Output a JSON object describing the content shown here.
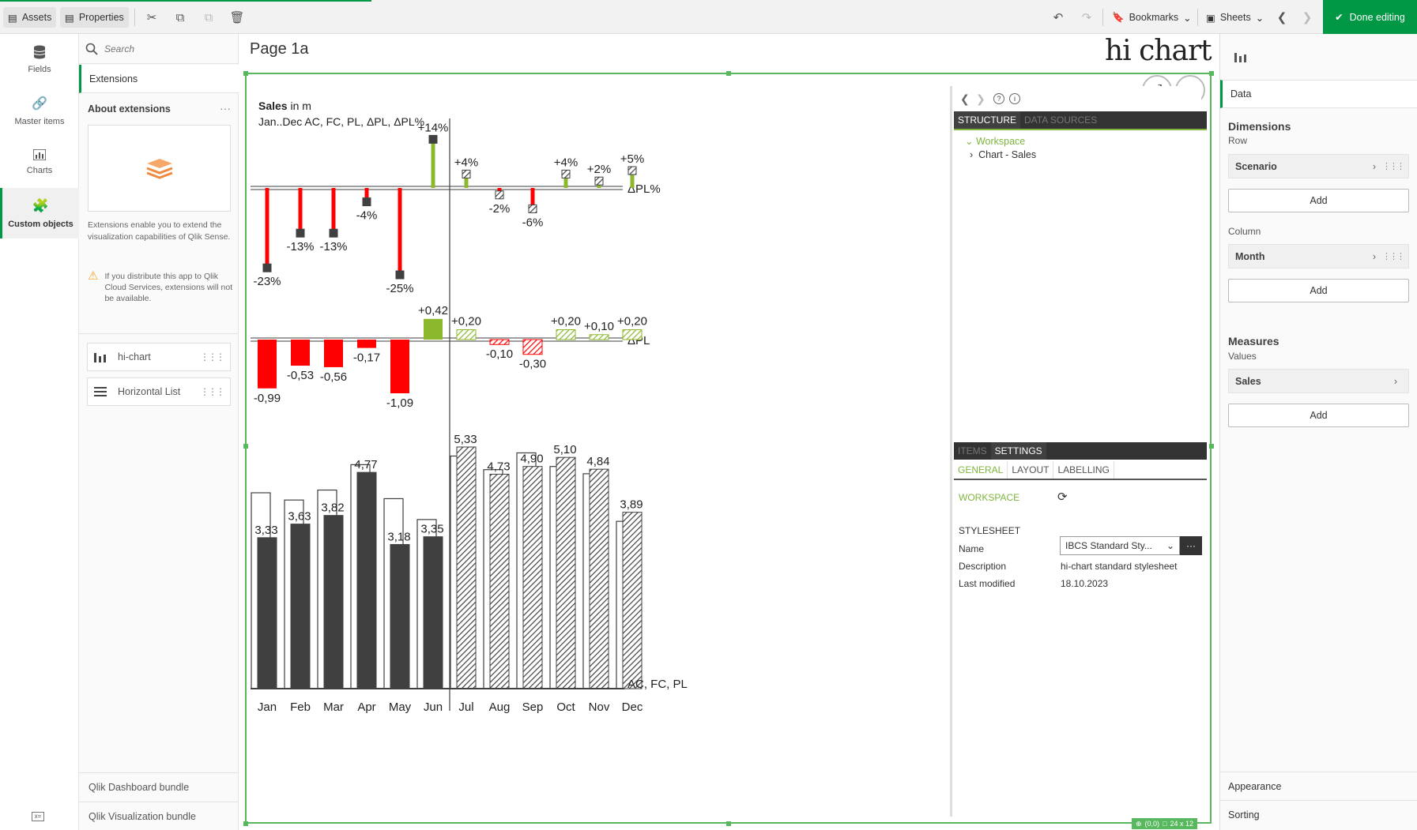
{
  "toolbar": {
    "assets_label": "Assets",
    "properties_label": "Properties",
    "bookmarks_label": "Bookmarks",
    "sheets_label": "Sheets",
    "done_label": "Done editing"
  },
  "left_rail": {
    "items": [
      {
        "label": "Fields",
        "icon": "database-icon"
      },
      {
        "label": "Master items",
        "icon": "link-icon"
      },
      {
        "label": "Charts",
        "icon": "bar-chart-icon"
      },
      {
        "label": "Custom objects",
        "icon": "puzzle-icon"
      }
    ]
  },
  "asset_panel": {
    "search_placeholder": "Search",
    "extensions_tab": "Extensions",
    "about_title": "About extensions",
    "about_text": "Extensions enable you to extend the visualization capabilities of Qlik Sense.",
    "warning_text": "If you distribute this app to Qlik Cloud Services, extensions will not be available.",
    "extensions": [
      {
        "label": "hi-chart",
        "icon": "bar-chart-icon"
      },
      {
        "label": "Horizontal List",
        "icon": "list-icon"
      }
    ],
    "bundles": [
      "Qlik Dashboard bundle",
      "Qlik Visualization bundle"
    ]
  },
  "sheet": {
    "title": "Page 1a",
    "logo_text": "hi chart",
    "status_text": "(0,0)",
    "status_size": "24 x 12"
  },
  "chart_data": {
    "type": "bar",
    "title_bold": "Sales",
    "title_rest": " in m",
    "subtitle": "Jan..Dec AC, FC, PL, ΔPL, ΔPL%",
    "categories": [
      "Jan",
      "Feb",
      "Mar",
      "Apr",
      "May",
      "Jun",
      "Jul",
      "Aug",
      "Sep",
      "Oct",
      "Nov",
      "Dec"
    ],
    "scenario_split": "Jun",
    "series": [
      {
        "name": "AC, FC",
        "values": [
          3.33,
          3.63,
          3.82,
          4.77,
          3.18,
          3.35,
          5.33,
          4.73,
          4.9,
          5.1,
          4.84,
          3.89
        ]
      },
      {
        "name": "PL",
        "values": [
          4.32,
          4.16,
          4.38,
          4.94,
          4.19,
          3.73,
          5.13,
          4.83,
          5.2,
          4.9,
          4.74,
          3.69
        ]
      }
    ],
    "value_labels": [
      "3,33",
      "3,63",
      "3,82",
      "4,77",
      "3,18",
      "3,35",
      "5,33",
      "4,73",
      "4,90",
      "5,10",
      "4,84",
      "3,89"
    ],
    "bottom_label": "AC, FC, PL",
    "delta_pl": {
      "label": "ΔPL",
      "values": [
        -0.99,
        -0.53,
        -0.56,
        -0.17,
        -1.09,
        0.42,
        0.2,
        -0.1,
        -0.3,
        0.2,
        0.1,
        0.2
      ],
      "labels": [
        "-0,99",
        "-0,53",
        "-0,56",
        "-0,17",
        "-1,09",
        "+0,42",
        "+0,20",
        "-0,10",
        "-0,30",
        "+0,20",
        "+0,10",
        "+0,20"
      ]
    },
    "delta_pl_pct": {
      "label": "ΔPL%",
      "values": [
        -23,
        -13,
        -13,
        -4,
        -25,
        14,
        4,
        -2,
        -6,
        4,
        2,
        5
      ],
      "labels": [
        "-23%",
        "-13%",
        "-13%",
        "-4%",
        "-25%",
        "+14%",
        "+4%",
        "-2%",
        "-6%",
        "+4%",
        "+2%",
        "+5%"
      ]
    },
    "colors": {
      "ac": "#404040",
      "positive": "#8cb82e",
      "negative": "#ff0000",
      "axis": "#404040"
    }
  },
  "hichart_panel": {
    "tabs_top": [
      "STRUCTURE",
      "DATA SOURCES"
    ],
    "tree_root": "Workspace",
    "tree_child": "Chart - Sales",
    "tabs_mid": [
      "ITEMS",
      "SETTINGS"
    ],
    "subtabs": [
      "GENERAL",
      "LAYOUT",
      "LABELLING"
    ],
    "workspace_label": "WORKSPACE",
    "stylesheet_label": "STYLESHEET",
    "name_label": "Name",
    "name_value": "IBCS Standard Sty...",
    "description_label": "Description",
    "description_value": "hi-chart standard stylesheet",
    "modified_label": "Last modified",
    "modified_value": "18.10.2023"
  },
  "right_panel": {
    "data_tab": "Data",
    "dimensions_title": "Dimensions",
    "row_label": "Row",
    "row_field": "Scenario",
    "column_label": "Column",
    "column_field": "Month",
    "add_label": "Add",
    "measures_title": "Measures",
    "values_label": "Values",
    "measure_field": "Sales",
    "appearance_label": "Appearance",
    "sorting_label": "Sorting"
  }
}
